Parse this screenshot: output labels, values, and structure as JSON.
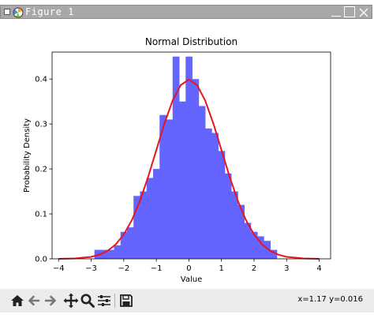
{
  "window": {
    "title": "Figure 1"
  },
  "toolbar": {
    "coords": "x=1.17 y=0.016",
    "tools": [
      "home-icon",
      "back-icon",
      "forward-icon",
      "pan-icon",
      "zoom-icon",
      "configure-subplots-icon",
      "save-icon"
    ]
  },
  "chart_data": {
    "type": "bar",
    "title": "Normal Distribution",
    "xlabel": "Value",
    "ylabel": "Probability Density",
    "xlim": [
      -4.2,
      4.35
    ],
    "ylim": [
      0,
      0.46
    ],
    "xticks": [
      -4,
      -3,
      -2,
      -1,
      0,
      1,
      2,
      3,
      4
    ],
    "xtick_labels": [
      "−4",
      "−3",
      "−2",
      "−1",
      "0",
      "1",
      "2",
      "3",
      "4"
    ],
    "yticks": [
      0.0,
      0.1,
      0.2,
      0.3,
      0.4
    ],
    "ytick_labels": [
      "0.0",
      "0.1",
      "0.2",
      "0.3",
      "0.4"
    ],
    "grid": false,
    "colors": {
      "bars": "#6464ff",
      "curve": "#e8141e"
    },
    "histogram": {
      "bin_edges": [
        -2.9,
        -2.7,
        -2.5,
        -2.3,
        -2.1,
        -1.9,
        -1.7,
        -1.5,
        -1.3,
        -1.1,
        -0.9,
        -0.7,
        -0.5,
        -0.3,
        -0.1,
        0.1,
        0.3,
        0.5,
        0.7,
        0.9,
        1.1,
        1.3,
        1.5,
        1.7,
        1.9,
        2.1,
        2.3,
        2.5,
        2.7
      ],
      "density": [
        0.02,
        0.02,
        0.02,
        0.03,
        0.06,
        0.07,
        0.14,
        0.15,
        0.18,
        0.2,
        0.32,
        0.31,
        0.45,
        0.35,
        0.45,
        0.4,
        0.34,
        0.29,
        0.28,
        0.24,
        0.19,
        0.15,
        0.12,
        0.08,
        0.06,
        0.05,
        0.04,
        0.02
      ]
    },
    "curve": {
      "name": "pdf",
      "x": [
        -4.0,
        -3.5,
        -3.0,
        -2.75,
        -2.5,
        -2.25,
        -2.0,
        -1.75,
        -1.5,
        -1.25,
        -1.0,
        -0.75,
        -0.5,
        -0.25,
        0.0,
        0.25,
        0.5,
        0.75,
        1.0,
        1.25,
        1.5,
        1.75,
        2.0,
        2.25,
        2.5,
        2.75,
        3.0,
        3.5,
        4.0
      ],
      "y": [
        0.0001,
        0.0009,
        0.0044,
        0.0091,
        0.0175,
        0.0317,
        0.054,
        0.0863,
        0.1295,
        0.1826,
        0.242,
        0.3011,
        0.3521,
        0.3867,
        0.3989,
        0.3867,
        0.3521,
        0.3011,
        0.242,
        0.1826,
        0.1295,
        0.0863,
        0.054,
        0.0317,
        0.0175,
        0.0091,
        0.0044,
        0.0009,
        0.0001
      ]
    }
  }
}
